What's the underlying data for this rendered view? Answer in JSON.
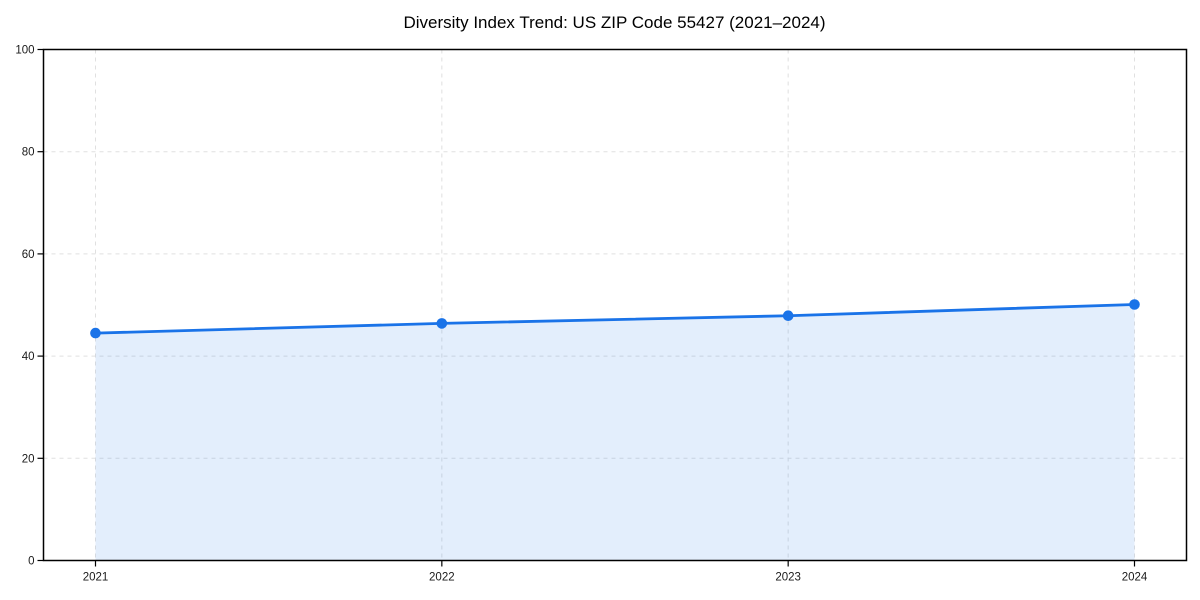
{
  "chart_data": {
    "type": "line",
    "title": "Diversity Index Trend: US ZIP Code 55427 (2021–2024)",
    "x": [
      2021,
      2022,
      2023,
      2024
    ],
    "xtick_labels": [
      "2021",
      "2022",
      "2023",
      "2024"
    ],
    "series": [
      {
        "name": "Diversity Index",
        "values": [
          44.5,
          46.4,
          47.9,
          50.1
        ]
      }
    ],
    "xlabel": "",
    "ylabel": "",
    "ylim": [
      0,
      100
    ],
    "yticks": [
      0,
      20,
      40,
      60,
      80,
      100
    ],
    "grid": true,
    "grid_style": "dashed",
    "legend": "none",
    "area_fill": true,
    "colors": {
      "line": "#1a73e8",
      "marker": "#1a73e8",
      "area": "rgba(26,115,232,0.12)",
      "gridline": "#e0e0e0",
      "spine": "#000000",
      "text": "#1a1a1a"
    }
  }
}
